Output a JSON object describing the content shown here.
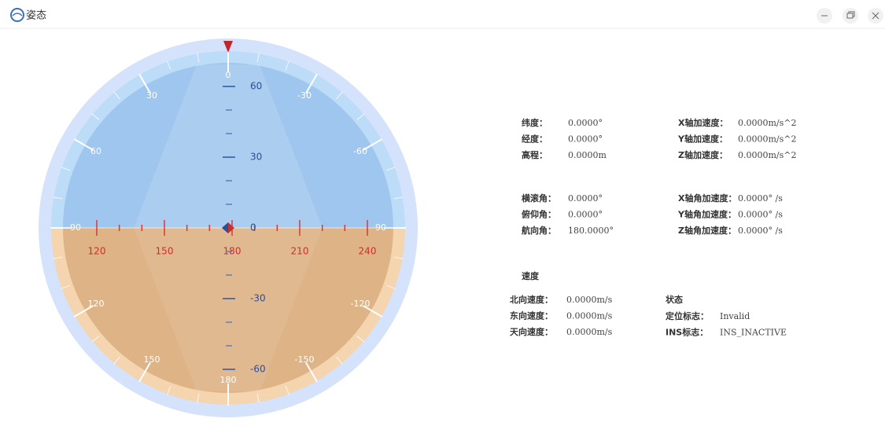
{
  "window": {
    "title": "姿态"
  },
  "indicator": {
    "roll_labels": [
      "0",
      "-30",
      "-60",
      "90",
      "-120",
      "-150",
      "180",
      "150",
      "120",
      "90",
      "60",
      "30"
    ],
    "pitch_labels": [
      "60",
      "30",
      "0",
      "-30",
      "-60"
    ],
    "heading_labels": [
      "120",
      "150",
      "180",
      "210",
      "240"
    ]
  },
  "info": {
    "position": [
      {
        "label": "纬度：",
        "value": "0.0000°"
      },
      {
        "label": "经度：",
        "value": "0.0000°"
      },
      {
        "label": "高程：",
        "value": "0.0000m"
      }
    ],
    "acceleration": [
      {
        "label": "X轴加速度：",
        "value": "0.0000m/s^2"
      },
      {
        "label": "Y轴加速度：",
        "value": "0.0000m/s^2"
      },
      {
        "label": "Z轴加速度：",
        "value": "0.0000m/s^2"
      }
    ],
    "angles": [
      {
        "label": "横滚角：",
        "value": "0.0000°"
      },
      {
        "label": "俯仰角：",
        "value": "0.0000°"
      },
      {
        "label": "航向角：",
        "value": "180.0000°"
      }
    ],
    "angular_acceleration": [
      {
        "label": "X轴角加速度：",
        "value": "0.0000° /s"
      },
      {
        "label": "Y轴角加速度：",
        "value": "0.0000° /s"
      },
      {
        "label": "Z轴角加速度：",
        "value": "0.0000° /s"
      }
    ],
    "speed_title": "速度",
    "speed": [
      {
        "label": "北向速度：",
        "value": "0.0000m/s"
      },
      {
        "label": "东向速度：",
        "value": "0.0000m/s"
      },
      {
        "label": "天向速度：",
        "value": "0.0000m/s"
      }
    ],
    "status_title": "状态",
    "status": [
      {
        "label": "定位标志：",
        "value": "Invalid"
      },
      {
        "label": "INS标志：",
        "value": "INS_INACTIVE"
      }
    ]
  }
}
